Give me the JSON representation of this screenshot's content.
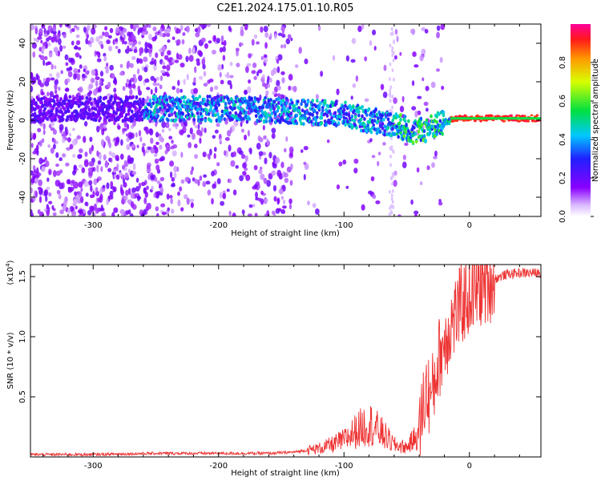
{
  "title": "C2E1.2024.175.01.10.R05",
  "chart_data": [
    {
      "type": "heatmap",
      "xlabel": "Height of straight line (km)",
      "ylabel": "Frequency (Hz)",
      "xlim": [
        -350,
        57
      ],
      "ylim": [
        -50,
        50
      ],
      "xticks": [
        -300,
        -200,
        -100,
        0
      ],
      "yticks": [
        -40,
        -20,
        0,
        20,
        40
      ],
      "grid": false,
      "colorbar": {
        "label": "Normalized spectral amplitude",
        "range": [
          0.0,
          1.0
        ],
        "ticks": [
          "0.0",
          "0.2",
          "0.4",
          "0.6",
          "0.8"
        ]
      },
      "ridge": {
        "x": [
          -350,
          -300,
          -250,
          -200,
          -150,
          -120,
          -100,
          -80,
          -60,
          -45,
          -35,
          -20,
          -10,
          0,
          20,
          57
        ],
        "y": [
          6,
          6,
          6,
          6,
          5,
          4,
          3,
          0,
          -2,
          -6,
          -5,
          -1,
          1,
          1,
          1,
          1
        ]
      }
    },
    {
      "type": "line",
      "xlabel": "Height of straight line (km)",
      "ylabel": "SNR (10 * v/v)",
      "multiplier": "(x10",
      "multiplier_exp": "4",
      "xlim": [
        -350,
        57
      ],
      "ylim": [
        0,
        1.6
      ],
      "xticks": [
        -300,
        -200,
        -100,
        0
      ],
      "yticks": [
        "0.5",
        "1.0",
        "1.5"
      ],
      "grid": false,
      "series": [
        {
          "color": "#ee3333",
          "x": [
            -350,
            -300,
            -250,
            -200,
            -160,
            -140,
            -120,
            -110,
            -100,
            -90,
            -80,
            -70,
            -60,
            -50,
            -40,
            -35,
            -30,
            -25,
            -20,
            -15,
            -10,
            -5,
            0,
            10,
            20,
            30,
            40,
            57
          ],
          "y": [
            0.02,
            0.02,
            0.03,
            0.03,
            0.03,
            0.04,
            0.07,
            0.1,
            0.14,
            0.22,
            0.28,
            0.2,
            0.1,
            0.08,
            0.2,
            0.55,
            0.5,
            0.8,
            0.95,
            1.1,
            1.2,
            1.28,
            1.35,
            1.42,
            1.48,
            1.52,
            1.53,
            1.53
          ]
        }
      ]
    }
  ]
}
